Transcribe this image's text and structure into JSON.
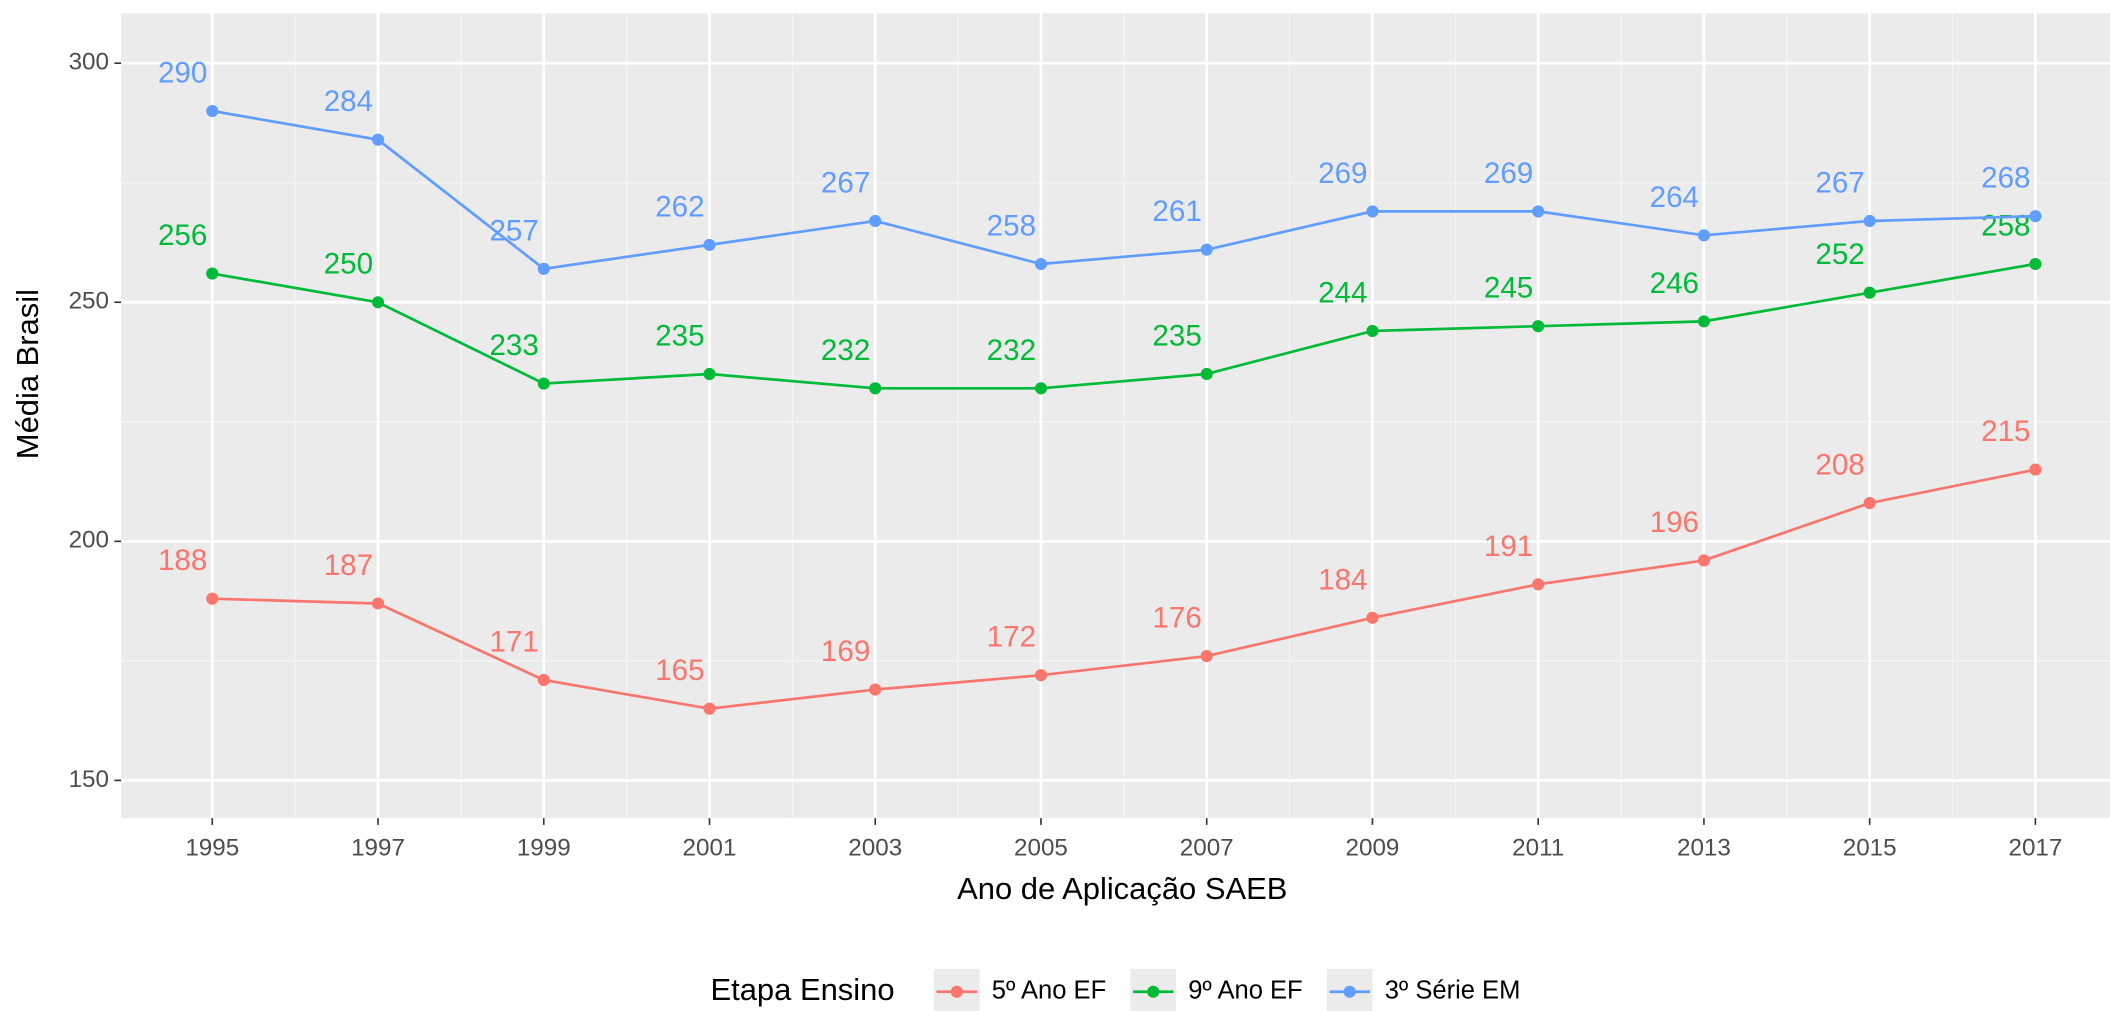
{
  "chart_data": {
    "type": "line",
    "x_label": "Ano de Aplicação SAEB",
    "y_label": "Média Brasil",
    "legend_title": "Etapa Ensino",
    "legend_position": "bottom",
    "grid": true,
    "x": [
      1995,
      1997,
      1999,
      2001,
      2003,
      2005,
      2007,
      2009,
      2011,
      2013,
      2015,
      2017
    ],
    "xlim": [
      1993.9,
      2017.9
    ],
    "xticks": [
      1995,
      1997,
      1999,
      2001,
      2003,
      2005,
      2007,
      2009,
      2011,
      2013,
      2015,
      2017
    ],
    "ylim": [
      142.1,
      310.4
    ],
    "yticks": [
      150,
      200,
      250,
      300
    ],
    "series": [
      {
        "name": "5º Ano EF",
        "color": "#F8766D",
        "values": [
          188,
          187,
          171,
          165,
          169,
          172,
          176,
          184,
          191,
          196,
          208,
          215
        ]
      },
      {
        "name": "9º Ano EF",
        "color": "#00BA38",
        "values": [
          256,
          250,
          233,
          235,
          232,
          232,
          235,
          244,
          245,
          246,
          252,
          258
        ]
      },
      {
        "name": "3º Série EM",
        "color": "#619CFF",
        "values": [
          290,
          284,
          257,
          262,
          267,
          258,
          261,
          269,
          269,
          264,
          267,
          268
        ]
      }
    ]
  }
}
